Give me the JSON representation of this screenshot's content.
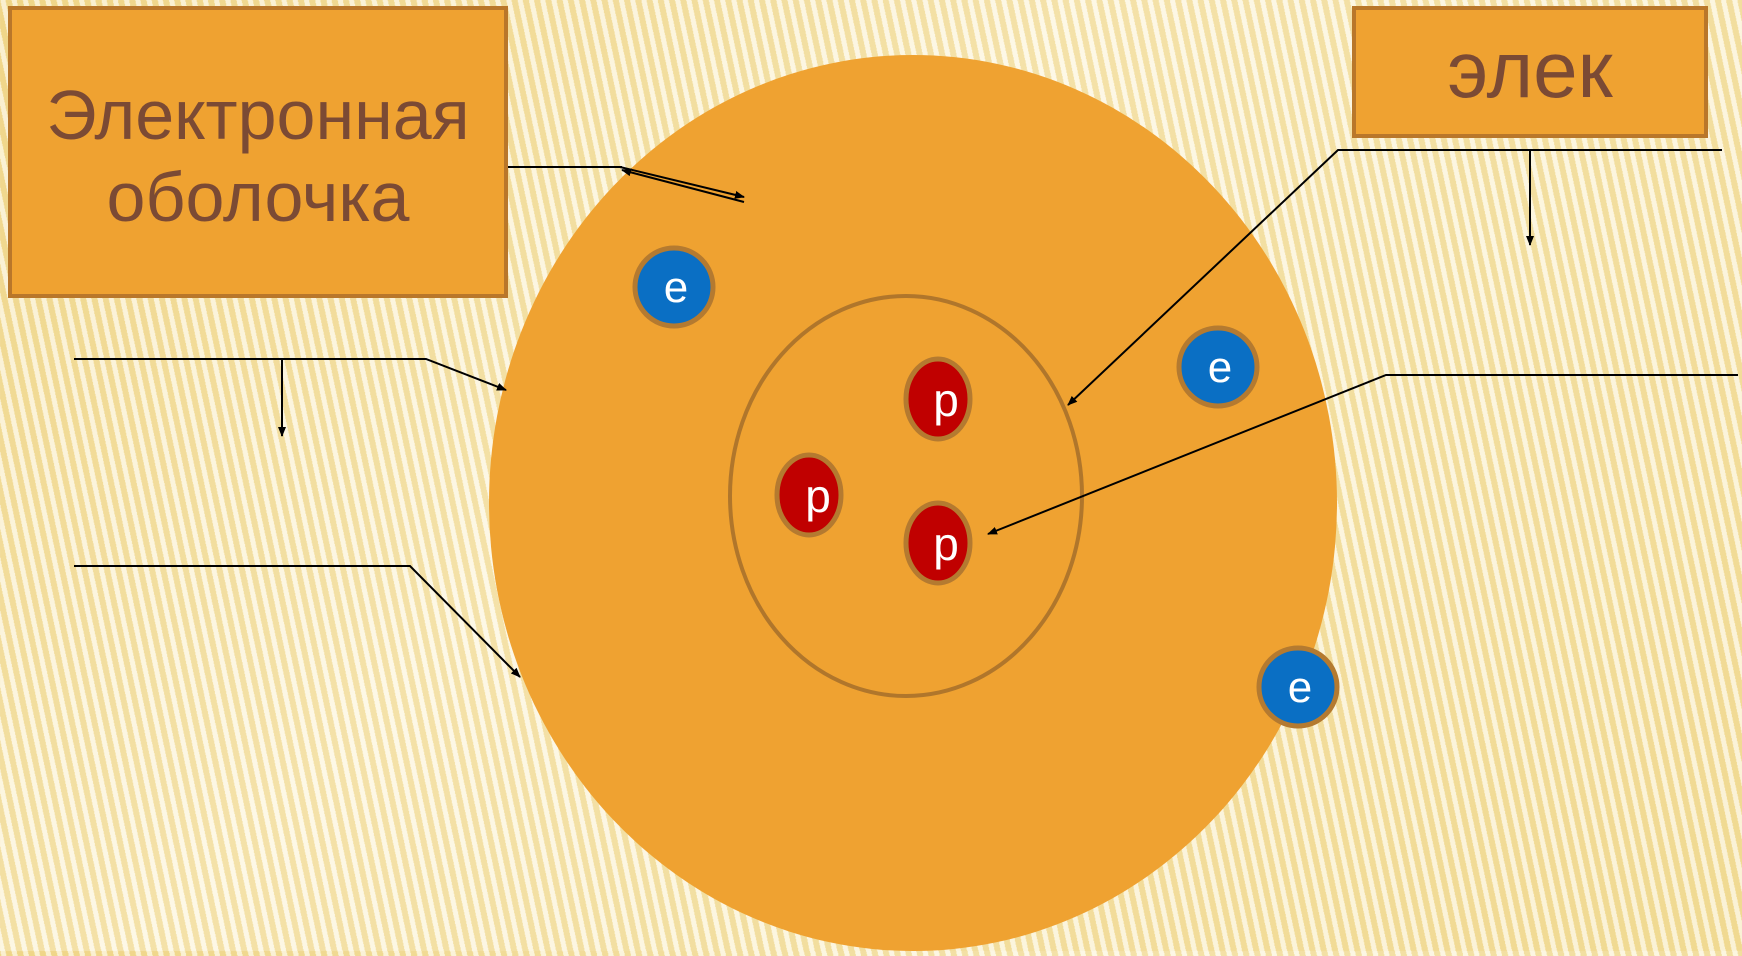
{
  "labels": {
    "shell_line1": "Электронная",
    "shell_line2": "оболочка",
    "electron_box": "элек"
  },
  "particles": {
    "electron_symbol": "e",
    "proton_symbol": "p"
  },
  "colors": {
    "atom_fill": "#efa231",
    "nucleus_stroke": "#b0762b",
    "electron_fill": "#0a6fc4",
    "proton_fill": "#c00000",
    "particle_border": "#b47a30",
    "box_text": "#7b4a34",
    "line": "#000000"
  }
}
